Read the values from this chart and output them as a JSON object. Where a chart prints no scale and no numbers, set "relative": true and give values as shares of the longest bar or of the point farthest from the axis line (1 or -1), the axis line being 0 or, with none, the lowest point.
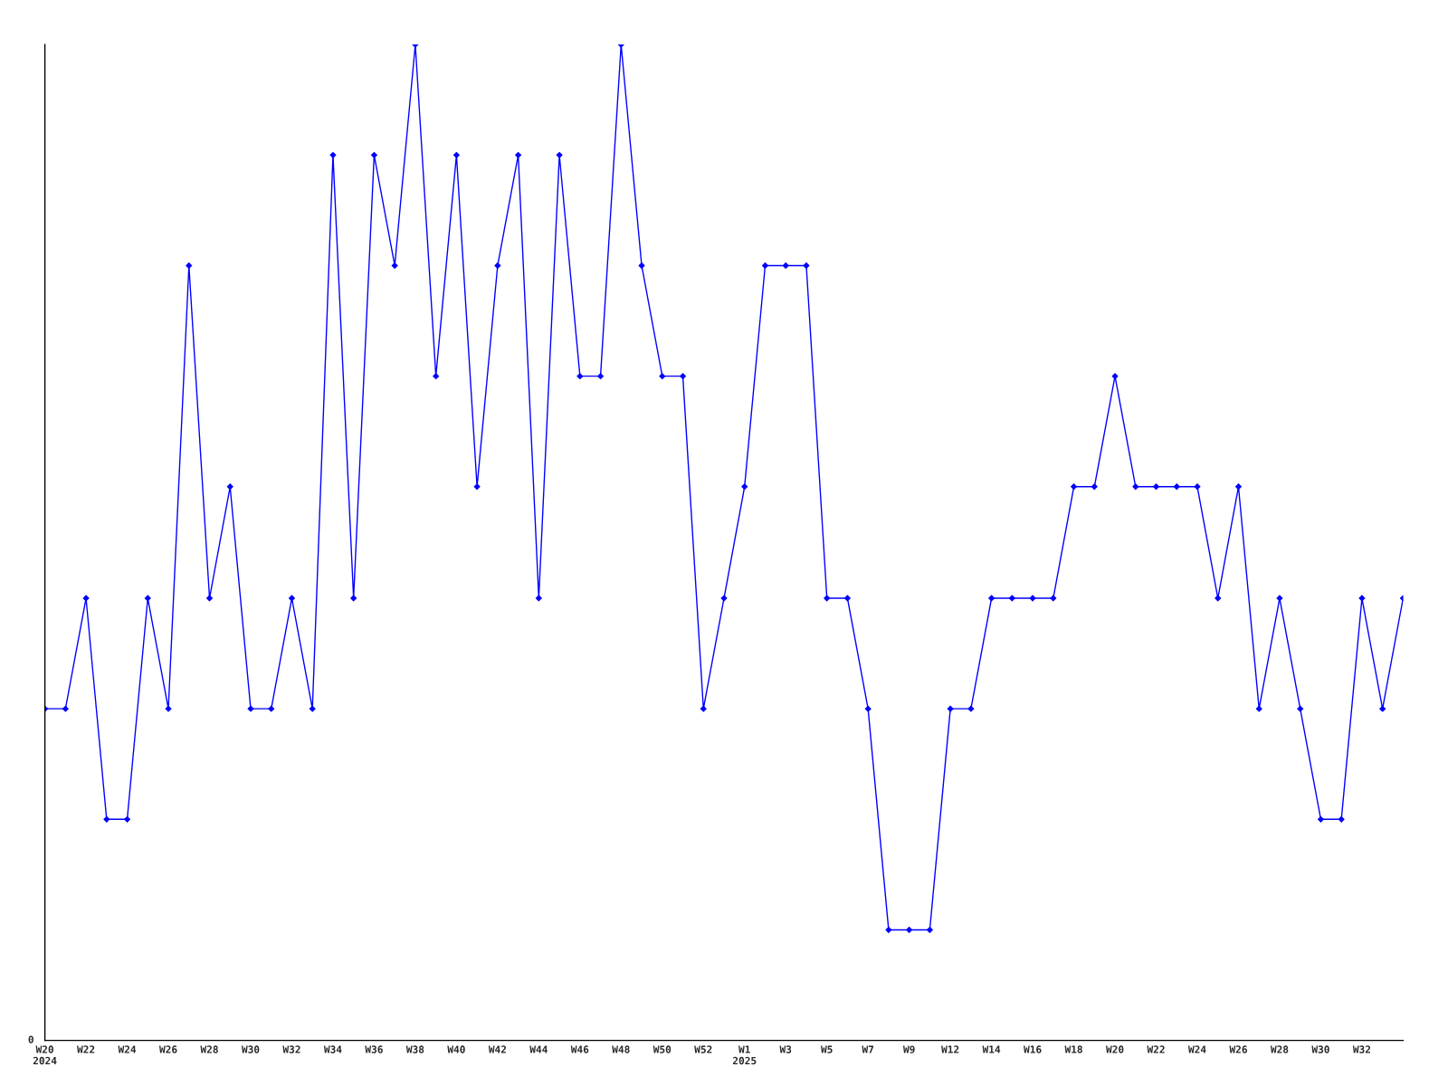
{
  "chart_data": {
    "type": "line",
    "relative": true,
    "marker": "diamond",
    "line_style": "solid",
    "grid": false,
    "legend": false,
    "annotations": [
      "0"
    ],
    "categories": [
      "W20\n2024",
      null,
      "W22",
      null,
      "W24",
      null,
      "W26",
      null,
      "W28",
      null,
      "W30",
      null,
      "W32",
      null,
      "W34",
      null,
      "W36",
      null,
      "W38",
      null,
      "W40",
      null,
      "W42",
      null,
      "W44",
      null,
      "W46",
      null,
      "W48",
      null,
      "W50",
      null,
      "W52",
      null,
      "W1\n2025",
      null,
      "W3",
      null,
      "W5",
      null,
      "W7",
      null,
      "W9",
      null,
      "W12",
      null,
      "W14",
      null,
      "W16",
      null,
      "W18",
      null,
      "W20",
      null,
      "W22",
      null,
      "W24",
      null,
      "W26",
      null,
      "W28",
      null,
      "W30",
      null,
      "W32",
      null,
      null
    ],
    "series": [
      {
        "color": "#0000ff",
        "values": [
          0.333,
          0.333,
          0.444,
          0.222,
          0.222,
          0.444,
          0.333,
          0.778,
          0.444,
          0.556,
          0.333,
          0.333,
          0.444,
          0.333,
          0.889,
          0.444,
          0.889,
          0.778,
          1,
          0.667,
          0.889,
          0.556,
          0.778,
          0.889,
          0.444,
          0.889,
          0.667,
          0.667,
          1,
          0.778,
          0.667,
          0.667,
          0.333,
          0.444,
          0.556,
          0.778,
          0.778,
          0.778,
          0.444,
          0.444,
          0.333,
          0.111,
          0.111,
          0.111,
          0.333,
          0.333,
          0.444,
          0.444,
          0.444,
          0.444,
          0.556,
          0.556,
          0.667,
          0.556,
          0.556,
          0.556,
          0.556,
          0.444,
          0.556,
          0.333,
          0.444,
          0.333,
          0.222,
          0.222,
          0.444,
          0.333,
          0.444
        ]
      }
    ]
  }
}
